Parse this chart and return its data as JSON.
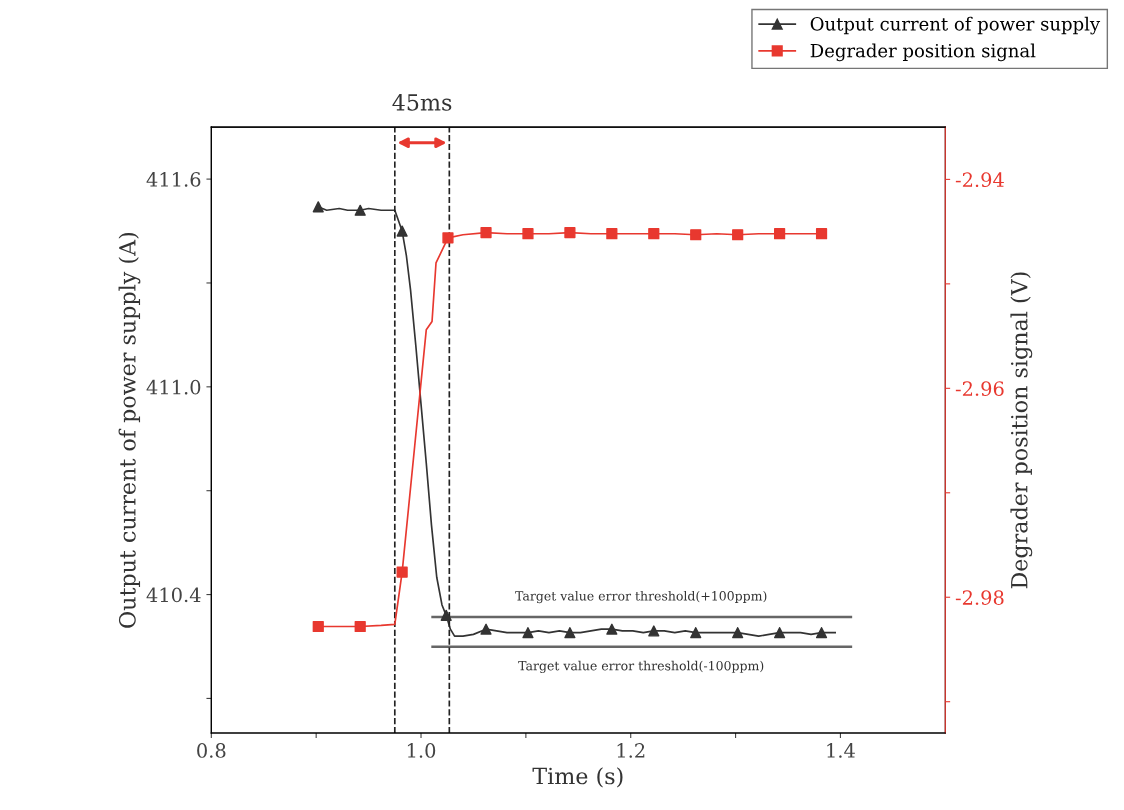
{
  "chart_data": {
    "type": "line",
    "xlabel": "Time (s)",
    "ylabel": "Output current of power supply (A)",
    "y2label": "Degrader position signal (V)",
    "xlim": [
      0.8,
      1.5
    ],
    "xticks": [
      0.8,
      {
        "value": 0.9,
        "label": null
      },
      {
        "value": 1.0,
        "label": "1.0"
      },
      {
        "value": 1.1,
        "label": null
      },
      1.2,
      {
        "value": 1.3,
        "label": null
      },
      1.4
    ],
    "ylim": [
      410.0,
      411.75
    ],
    "yticks": [
      {
        "value": 410.1,
        "label": null
      },
      410.4,
      {
        "value": 410.7,
        "label": null
      },
      {
        "value": 411.0,
        "label": "411.0"
      },
      {
        "value": 411.3,
        "label": null
      },
      411.6
    ],
    "y2lim": [
      -2.993,
      -2.935
    ],
    "y2ticks": [
      {
        "value": -2.99,
        "label": null
      },
      -2.98,
      {
        "value": -2.97,
        "label": null
      },
      -2.96,
      {
        "value": -2.95,
        "label": null
      },
      -2.94
    ],
    "legend": "top right",
    "grid": false,
    "line_style": "solid",
    "series": [
      {
        "name": "Output current of power supply",
        "type": "scatter",
        "color": "#333333",
        "marker": "triangle",
        "x": [
          0.902,
          0.942,
          0.982,
          1.024,
          1.062,
          1.102,
          1.142,
          1.182,
          1.222,
          1.262,
          1.302,
          1.342,
          1.382
        ],
        "values": [
          411.52,
          411.51,
          411.45,
          410.34,
          410.3,
          410.29,
          410.29,
          410.3,
          410.295,
          410.29,
          410.29,
          410.29,
          410.29
        ]
      },
      {
        "color": "#333333",
        "x": [
          0.902,
          0.91,
          0.922,
          0.93,
          0.942,
          0.95,
          0.962,
          0.97,
          0.975,
          0.982,
          0.986,
          0.99,
          0.995,
          1.0,
          1.005,
          1.01,
          1.015,
          1.02,
          1.024,
          1.028,
          1.032,
          1.04,
          1.05,
          1.062,
          1.072,
          1.082,
          1.092,
          1.102,
          1.112,
          1.122,
          1.132,
          1.142,
          1.152,
          1.162,
          1.172,
          1.182,
          1.192,
          1.202,
          1.212,
          1.222,
          1.232,
          1.242,
          1.252,
          1.262,
          1.272,
          1.282,
          1.292,
          1.302,
          1.312,
          1.322,
          1.332,
          1.342,
          1.352,
          1.362,
          1.372,
          1.382,
          1.395
        ],
        "values": [
          411.52,
          411.51,
          411.515,
          411.51,
          411.51,
          411.515,
          411.51,
          411.51,
          411.51,
          411.45,
          411.38,
          411.28,
          411.12,
          410.95,
          410.78,
          410.6,
          410.45,
          410.37,
          410.34,
          410.3,
          410.28,
          410.28,
          410.285,
          410.3,
          410.295,
          410.29,
          410.29,
          410.29,
          410.295,
          410.29,
          410.295,
          410.29,
          410.29,
          410.295,
          410.3,
          410.3,
          410.295,
          410.295,
          410.29,
          410.295,
          410.295,
          410.29,
          410.295,
          410.29,
          410.29,
          410.29,
          410.29,
          410.29,
          410.285,
          410.28,
          410.285,
          410.29,
          410.29,
          410.29,
          410.285,
          410.29,
          410.29
        ]
      },
      {
        "name": "Degrader position signal",
        "type": "scatter",
        "color": "#e8382f",
        "marker": "square",
        "axis": "y2",
        "x": [
          0.902,
          0.942,
          0.982,
          1.0257,
          1.062,
          1.102,
          1.142,
          1.182,
          1.222,
          1.262,
          1.302,
          1.342,
          1.382
        ],
        "values": [
          -2.9828,
          -2.9828,
          -2.9776,
          -2.9456,
          -2.9451,
          -2.9452,
          -2.9451,
          -2.9452,
          -2.9452,
          -2.9453,
          -2.9453,
          -2.9452,
          -2.9452
        ]
      },
      {
        "color": "#e8382f",
        "axis": "y2",
        "x": [
          0.902,
          0.922,
          0.942,
          0.962,
          0.975,
          0.982,
          0.994,
          1.005,
          1.0105,
          1.0143,
          1.0257,
          1.04,
          1.062,
          1.082,
          1.102,
          1.122,
          1.142,
          1.162,
          1.182,
          1.202,
          1.222,
          1.242,
          1.262,
          1.282,
          1.302,
          1.322,
          1.342,
          1.362,
          1.382
        ],
        "values": [
          -2.9828,
          -2.9828,
          -2.9828,
          -2.9827,
          -2.9826,
          -2.9776,
          -2.9655,
          -2.9544,
          -2.9536,
          -2.948,
          -2.9456,
          -2.9453,
          -2.9451,
          -2.9452,
          -2.9452,
          -2.9452,
          -2.9451,
          -2.9452,
          -2.9452,
          -2.9452,
          -2.9452,
          -2.9452,
          -2.9453,
          -2.9452,
          -2.9453,
          -2.9452,
          -2.9452,
          -2.9452,
          -2.9452
        ]
      },
      {
        "color": "#666666",
        "x": [
          1.011,
          1.41
        ],
        "values": [
          410.335,
          410.335
        ]
      },
      {
        "color": "#666666",
        "x": [
          1.011,
          1.41
        ],
        "values": [
          410.249,
          410.249
        ]
      }
    ],
    "ref_lines": [
      {
        "axis": "x",
        "value": 0.975,
        "line_style": "dashed",
        "color": "#222222"
      },
      {
        "axis": "x",
        "value": 1.027,
        "line_style": "dashed",
        "color": "#222222"
      }
    ],
    "annotations": [
      "45ms",
      {
        "text": "Target value error threshold(+100ppm)",
        "x": 1.21,
        "y": 410.335
      },
      {
        "text": "Target value error threshold(-100ppm)",
        "x": 1.21,
        "y": 410.249
      }
    ]
  }
}
